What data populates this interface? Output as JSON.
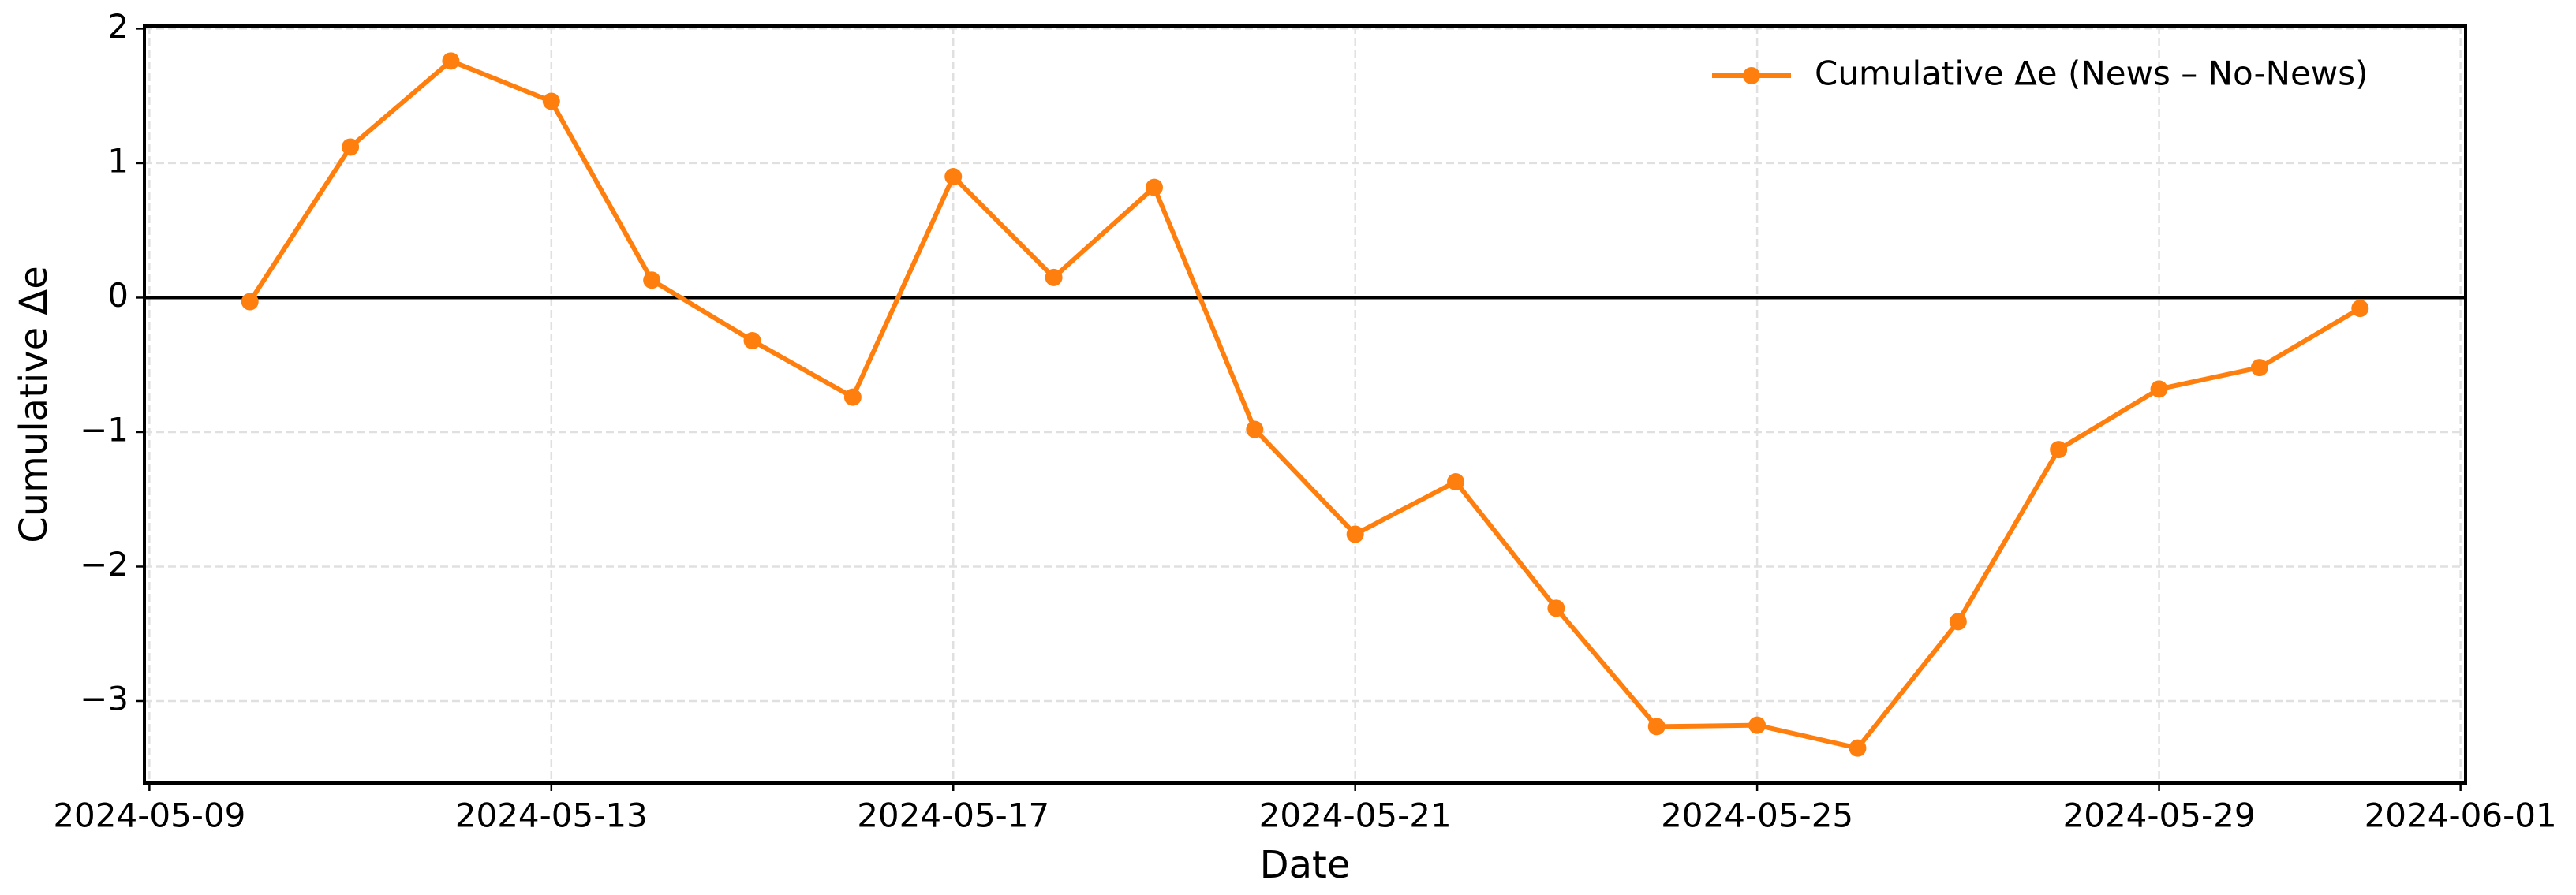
{
  "chart_data": {
    "type": "line",
    "xlabel": "Date",
    "ylabel": "Cumulative Δe",
    "x": [
      "2024-05-10",
      "2024-05-11",
      "2024-05-12",
      "2024-05-13",
      "2024-05-14",
      "2024-05-15",
      "2024-05-16",
      "2024-05-17",
      "2024-05-18",
      "2024-05-19",
      "2024-05-20",
      "2024-05-21",
      "2024-05-22",
      "2024-05-23",
      "2024-05-24",
      "2024-05-25",
      "2024-05-26",
      "2024-05-27",
      "2024-05-28",
      "2024-05-29",
      "2024-05-30",
      "2024-05-31"
    ],
    "series": [
      {
        "name": "Cumulative Δe (News – No-News)",
        "color": "#ff7f0e",
        "values": [
          -0.03,
          1.12,
          1.76,
          1.46,
          0.13,
          -0.32,
          -0.74,
          0.9,
          0.15,
          0.82,
          -0.98,
          -1.76,
          -1.37,
          -2.31,
          -3.19,
          -3.18,
          -3.35,
          -2.41,
          -1.13,
          -0.68,
          -0.52,
          -0.08
        ]
      }
    ],
    "xlim": [
      "2024-05-08T22:48:00Z",
      "2024-06-01T01:12:00Z"
    ],
    "xticks": [
      "2024-05-09",
      "2024-05-13",
      "2024-05-17",
      "2024-05-21",
      "2024-05-25",
      "2024-05-29",
      "2024-06-01"
    ],
    "ylim": [
      -3.61,
      2.02
    ],
    "yticks": [
      {
        "value": -3,
        "label": "−3"
      },
      {
        "value": -2,
        "label": "−2"
      },
      {
        "value": -1,
        "label": "−1"
      },
      0,
      1,
      2
    ],
    "reference_line": 0,
    "grid": true,
    "legend": "upper right"
  }
}
